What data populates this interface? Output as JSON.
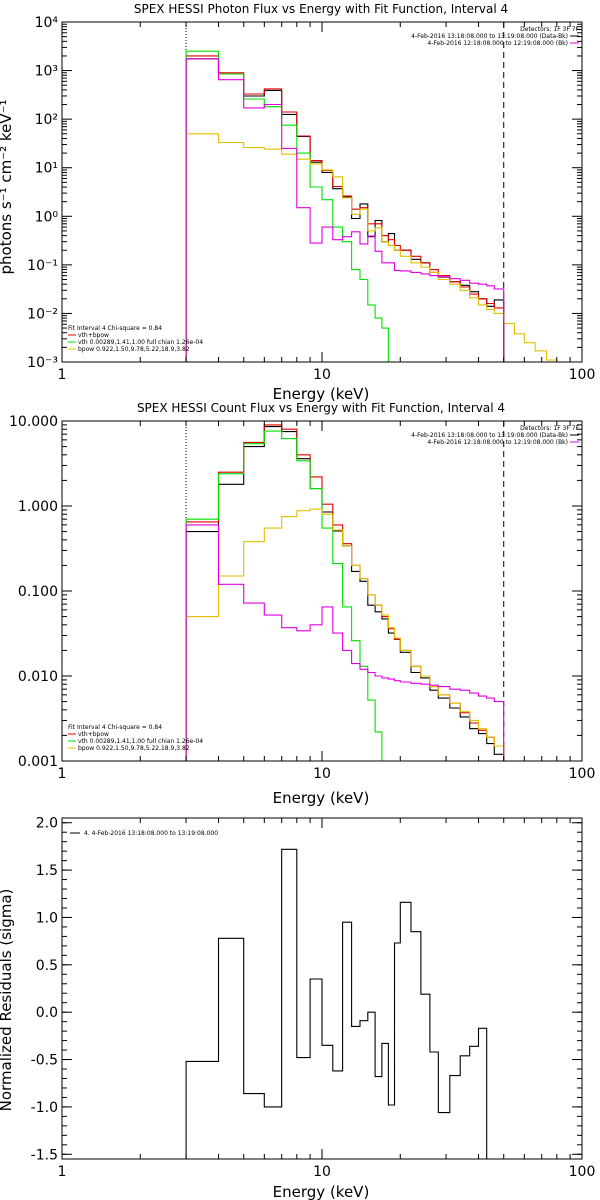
{
  "colors": {
    "data": "#000000",
    "fit_total": "#e00000",
    "vth": "#00e000",
    "bpow": "#e0c000",
    "background": "#e000e0"
  },
  "chart_data": [
    {
      "type": "line",
      "step": true,
      "title": "SPEX HESSI Photon Flux vs Energy with Fit Function, Interval 4",
      "xlabel": "Energy (keV)",
      "ylabel": "photons s⁻¹ cm⁻² keV⁻¹",
      "xscale": "log",
      "yscale": "log",
      "xlim": [
        1,
        100
      ],
      "ylim": [
        0.001,
        10000
      ],
      "xticks": [
        {
          "v": 1,
          "label": "1"
        },
        {
          "v": 10,
          "label": "10"
        },
        {
          "v": 100,
          "label": "100"
        }
      ],
      "yticks": [
        {
          "v": 0.001,
          "label": "10⁻³"
        },
        {
          "v": 0.01,
          "label": "10⁻²"
        },
        {
          "v": 0.1,
          "label": "10⁻¹"
        },
        {
          "v": 1,
          "label": "10⁰"
        },
        {
          "v": 10,
          "label": "10¹"
        },
        {
          "v": 100,
          "label": "10²"
        },
        {
          "v": 1000,
          "label": "10³"
        },
        {
          "v": 10000,
          "label": "10⁴"
        }
      ],
      "vlines": [
        {
          "x": 3.0,
          "style": "dotted"
        },
        {
          "x": 50.0,
          "style": "dashed"
        }
      ],
      "header": [
        {
          "text": "Detectors: 1F 3F 7F",
          "marker": ""
        },
        {
          "text": "4-Feb-2016 13:18:08.000 to 13:19:08.000 (Data-Bk)",
          "marker": "data"
        },
        {
          "text": "4-Feb-2016 12:18:08.000 to 12:19:08.000 (Bk)",
          "marker": "background"
        }
      ],
      "legend": {
        "title": "Fit Interval 4   Chi-square = 0.84",
        "entries": [
          {
            "text": "vth+bpow",
            "color_key": "fit_total"
          },
          {
            "text": "vth 0.00289,1.41,1.00  full chian 1.26e-04",
            "color_key": "vth"
          },
          {
            "text": "bpow 0.922,1.50,9.78,5.22,18.9,3.82",
            "color_key": "bpow"
          }
        ]
      },
      "edges": [
        3,
        4,
        5,
        6,
        7,
        8,
        9,
        10,
        11,
        12,
        13,
        14,
        15,
        16,
        17,
        18,
        19,
        20,
        22,
        24,
        26,
        28,
        31,
        34,
        37,
        40,
        43,
        46,
        50,
        55,
        60,
        66,
        73,
        80
      ],
      "series": [
        {
          "key": "data",
          "values": [
            1750,
            850,
            300,
            390,
            125,
            44,
            13,
            8.0,
            3.7,
            2.5,
            0.9,
            1.8,
            0.38,
            0.82,
            0.3,
            0.44,
            0.2,
            0.2,
            0.13,
            0.11,
            0.07,
            0.056,
            0.045,
            0.038,
            0.028,
            0.02,
            0.014,
            0.019
          ]
        },
        {
          "key": "fit_total",
          "values": [
            2000,
            900,
            330,
            420,
            140,
            45,
            14,
            8.8,
            4.1,
            2.6,
            1.4,
            1.5,
            0.7,
            0.7,
            0.4,
            0.33,
            0.25,
            0.2,
            0.15,
            0.11,
            0.08,
            0.06,
            0.045,
            0.035,
            0.025,
            0.02,
            0.016,
            0.013
          ]
        },
        {
          "key": "vth",
          "values": [
            2500,
            850,
            260,
            180,
            75,
            20,
            4.0,
            2.2,
            0.6,
            0.3,
            0.08,
            0.05,
            0.015,
            0.008,
            0.005,
            0.001
          ]
        },
        {
          "key": "bpow",
          "values": [
            50,
            33,
            26,
            24,
            19,
            15,
            12,
            9.0,
            6.5,
            2.4,
            1.1,
            1.4,
            0.5,
            0.58,
            0.3,
            0.25,
            0.2,
            0.15,
            0.11,
            0.09,
            0.07,
            0.05,
            0.04,
            0.03,
            0.021,
            0.015,
            0.012,
            0.01,
            0.0062,
            0.0038,
            0.0025,
            0.0017,
            0.0011
          ]
        },
        {
          "key": "background",
          "values": [
            1750,
            650,
            170,
            200,
            25,
            1.5,
            0.28,
            0.6,
            0.33,
            0.38,
            0.48,
            0.27,
            0.39,
            0.19,
            0.11,
            0.11,
            0.077,
            0.075,
            0.07,
            0.065,
            0.06,
            0.057,
            0.052,
            0.048,
            0.042,
            0.04,
            0.037,
            0.032
          ]
        }
      ]
    },
    {
      "type": "line",
      "step": true,
      "title": "SPEX HESSI Count Flux vs Energy with Fit Function, Interval 4",
      "xlabel": "Energy (keV)",
      "ylabel": "",
      "xscale": "log",
      "yscale": "log",
      "xlim": [
        1,
        100
      ],
      "ylim": [
        0.001,
        10
      ],
      "xticks": [
        {
          "v": 1,
          "label": "1"
        },
        {
          "v": 10,
          "label": "10"
        },
        {
          "v": 100,
          "label": "100"
        }
      ],
      "yticks": [
        {
          "v": 0.001,
          "label": "0.001"
        },
        {
          "v": 0.01,
          "label": "0.010"
        },
        {
          "v": 0.1,
          "label": "0.100"
        },
        {
          "v": 1,
          "label": "1.000"
        },
        {
          "v": 10,
          "label": "10.000"
        }
      ],
      "vlines": [
        {
          "x": 3.0,
          "style": "dotted"
        },
        {
          "x": 50.0,
          "style": "dashed"
        }
      ],
      "header": [
        {
          "text": "Detectors: 1F 3F 7F",
          "marker": ""
        },
        {
          "text": "4-Feb-2016 13:18:08.000 to 13:19:08.000 (Data-Bk)",
          "marker": "data"
        },
        {
          "text": "4-Feb-2016 12:18:08.000 to 12:19:08.000 (Bk)",
          "marker": "background"
        }
      ],
      "legend": {
        "title": "Fit Interval 4   Chi-square = 0.84",
        "entries": [
          {
            "text": "vth+bpow",
            "color_key": "fit_total"
          },
          {
            "text": "vth 0.00289,1.41,1.00  full chian 1.26e-04",
            "color_key": "vth"
          },
          {
            "text": "bpow 0.922,1.50,9.78,5.22,18.9,3.82",
            "color_key": "bpow"
          }
        ]
      },
      "edges": [
        3,
        4,
        5,
        6,
        7,
        8,
        9,
        10,
        11,
        12,
        13,
        14,
        15,
        16,
        17,
        18,
        19,
        20,
        22,
        24,
        26,
        28,
        31,
        34,
        37,
        40,
        43,
        46,
        50,
        55
      ],
      "series": [
        {
          "key": "data",
          "values": [
            0.5,
            1.8,
            5.0,
            8.6,
            7.5,
            3.6,
            1.6,
            0.85,
            0.51,
            0.34,
            0.17,
            0.13,
            0.068,
            0.057,
            0.047,
            0.032,
            0.027,
            0.019,
            0.011,
            0.0095,
            0.0068,
            0.0055,
            0.0042,
            0.0033,
            0.0024,
            0.0021,
            0.0016,
            0.0012
          ]
        },
        {
          "key": "fit_total",
          "values": [
            0.65,
            2.5,
            5.6,
            9.0,
            8.0,
            4.0,
            2.2,
            1.05,
            0.6,
            0.36,
            0.2,
            0.14,
            0.09,
            0.068,
            0.05,
            0.036,
            0.027,
            0.02,
            0.013,
            0.01,
            0.0075,
            0.006,
            0.0048,
            0.0037,
            0.0028,
            0.0023,
            0.0019,
            0.0015
          ]
        },
        {
          "key": "vth",
          "values": [
            0.7,
            2.4,
            5.4,
            7.6,
            6.2,
            3.4,
            1.6,
            0.55,
            0.21,
            0.065,
            0.026,
            0.013,
            0.0052,
            0.0022,
            0.001
          ]
        },
        {
          "key": "bpow",
          "values": [
            0.05,
            0.15,
            0.38,
            0.55,
            0.75,
            0.88,
            0.92,
            0.8,
            0.52,
            0.34,
            0.2,
            0.14,
            0.09,
            0.068,
            0.052,
            0.037,
            0.028,
            0.02,
            0.013,
            0.01,
            0.0075,
            0.006,
            0.0048,
            0.0038,
            0.003,
            0.0024,
            0.0019,
            0.0015,
            0.001
          ]
        },
        {
          "key": "background",
          "values": [
            0.6,
            0.12,
            0.072,
            0.052,
            0.037,
            0.034,
            0.04,
            0.065,
            0.032,
            0.02,
            0.014,
            0.012,
            0.011,
            0.01,
            0.0095,
            0.0092,
            0.0088,
            0.0085,
            0.0082,
            0.008,
            0.0078,
            0.0075,
            0.007,
            0.0068,
            0.0063,
            0.0058,
            0.0055,
            0.005
          ]
        }
      ]
    },
    {
      "type": "line",
      "step": true,
      "title": "",
      "xlabel": "Energy (keV)",
      "ylabel": "Normalized Residuals (sigma)",
      "xscale": "log",
      "yscale": "linear",
      "xlim": [
        1,
        100
      ],
      "ylim": [
        -1.55,
        2.05
      ],
      "xticks": [
        {
          "v": 1,
          "label": "1"
        },
        {
          "v": 10,
          "label": "10"
        },
        {
          "v": 100,
          "label": "100"
        }
      ],
      "yticks": [
        {
          "v": -1.5,
          "label": "-1.5"
        },
        {
          "v": -1.0,
          "label": "-1.0"
        },
        {
          "v": -0.5,
          "label": "-0.5"
        },
        {
          "v": 0.0,
          "label": "0.0"
        },
        {
          "v": 0.5,
          "label": "0.5"
        },
        {
          "v": 1.0,
          "label": "1.0"
        },
        {
          "v": 1.5,
          "label": "1.5"
        },
        {
          "v": 2.0,
          "label": "2.0"
        }
      ],
      "vlines": [],
      "header": [],
      "legend": {
        "title": "",
        "entries": [
          {
            "text": "4.  4-Feb-2016 13:18:08.000 to 13:19:08.000",
            "color_key": "data"
          }
        ]
      },
      "edges": [
        3,
        4,
        5,
        6,
        7,
        8,
        9,
        10,
        11,
        12,
        13,
        14,
        15,
        16,
        17,
        18,
        19,
        20,
        22,
        24,
        26,
        28,
        31,
        34,
        37,
        40,
        43,
        46,
        50
      ],
      "series": [
        {
          "key": "data",
          "values": [
            -0.52,
            0.78,
            -0.86,
            -1.0,
            1.72,
            -0.48,
            0.35,
            -0.35,
            -0.62,
            0.95,
            -0.15,
            -0.09,
            0.0,
            -0.68,
            -0.33,
            -0.98,
            0.73,
            1.16,
            0.85,
            0.19,
            -0.42,
            -1.06,
            -0.67,
            -0.46,
            -0.36,
            -0.17
          ]
        }
      ]
    }
  ]
}
